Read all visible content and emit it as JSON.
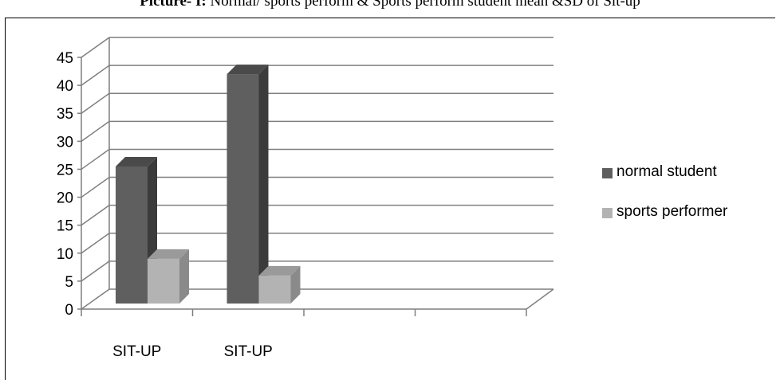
{
  "title": {
    "prefix": "Picture- I:",
    "text": "Normal/ sports perform & Sports perform student mean &SD of Sit-up"
  },
  "chart_data": {
    "type": "bar",
    "style": "3d-clustered-column",
    "categories": [
      "SIT-UP",
      "SIT-UP",
      "",
      ""
    ],
    "series": [
      {
        "name": "normal student",
        "values": [
          24.5,
          41,
          null,
          null
        ],
        "color": "#5f5f5f"
      },
      {
        "name": "sports performer",
        "values": [
          8,
          5,
          null,
          null
        ],
        "color": "#b3b3b3"
      }
    ],
    "yticks": [
      "0",
      "5",
      "10",
      "15",
      "20",
      "25",
      "30",
      "35",
      "40",
      "45"
    ],
    "ylim": [
      0,
      45
    ],
    "grid": true,
    "legend": "right",
    "colors": {
      "side_normal": "#3b3b3b",
      "top_normal": "#4a4a4a",
      "side_sports": "#8a8a8a",
      "top_sports": "#9a9a9a"
    }
  }
}
